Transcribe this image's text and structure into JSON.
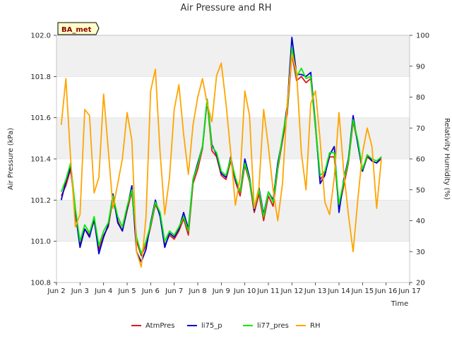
{
  "chart_data": {
    "type": "line",
    "title": "Air Pressure and RH",
    "badge": "BA_met",
    "xlabel": "Time",
    "ylabel": "Air Pressure (kPa)",
    "y2label": "Relativity Humidity (%)",
    "x_ticks": [
      "Jun 2",
      "Jun 3",
      "Jun 4",
      "Jun 5",
      "Jun 6",
      "Jun 7",
      "Jun 8",
      "Jun 9",
      "Jun 10",
      "Jun 11",
      "Jun 12",
      "Jun 13",
      "Jun 14",
      "Jun 15",
      "Jun 16",
      "Jun 17"
    ],
    "xlim": [
      2,
      17
    ],
    "ylim": [
      100.8,
      102.0
    ],
    "y_ticks": [
      "100.8",
      "101.0",
      "101.2",
      "101.4",
      "101.6",
      "101.8",
      "102.0"
    ],
    "y2lim": [
      20,
      100
    ],
    "y2_ticks": [
      "20",
      "30",
      "40",
      "50",
      "60",
      "70",
      "80",
      "90",
      "100"
    ],
    "grid": true,
    "legend_position": "bottom",
    "x": [
      2.2,
      2.4,
      2.6,
      2.8,
      3.0,
      3.2,
      3.4,
      3.6,
      3.8,
      4.0,
      4.2,
      4.4,
      4.6,
      4.8,
      5.0,
      5.2,
      5.4,
      5.6,
      5.8,
      6.0,
      6.2,
      6.4,
      6.6,
      6.8,
      7.0,
      7.2,
      7.4,
      7.6,
      7.8,
      8.0,
      8.2,
      8.4,
      8.6,
      8.8,
      9.0,
      9.2,
      9.4,
      9.6,
      9.8,
      10.0,
      10.2,
      10.4,
      10.6,
      10.8,
      11.0,
      11.2,
      11.4,
      11.6,
      11.8,
      12.0,
      12.2,
      12.4,
      12.6,
      12.8,
      13.0,
      13.2,
      13.4,
      13.6,
      13.8,
      14.0,
      14.2,
      14.4,
      14.6,
      14.8,
      15.0,
      15.2,
      15.4,
      15.6,
      15.8
    ],
    "series": [
      {
        "name": "AtmPres",
        "color": "#e41a1c",
        "axis": "left",
        "values": [
          101.22,
          101.27,
          101.35,
          101.15,
          100.99,
          101.06,
          101.03,
          101.1,
          100.96,
          101.03,
          101.07,
          101.21,
          101.1,
          101.05,
          101.15,
          101.24,
          101.0,
          100.93,
          100.98,
          101.07,
          101.18,
          101.13,
          100.98,
          101.03,
          101.01,
          101.05,
          101.11,
          101.03,
          101.28,
          101.35,
          101.45,
          101.68,
          101.44,
          101.41,
          101.32,
          101.3,
          101.39,
          101.29,
          101.22,
          101.37,
          101.29,
          101.14,
          101.23,
          101.1,
          101.22,
          101.17,
          101.35,
          101.49,
          101.62,
          101.91,
          101.78,
          101.8,
          101.77,
          101.79,
          101.55,
          101.3,
          101.33,
          101.41,
          101.41,
          101.16,
          101.27,
          101.38,
          101.58,
          101.48,
          101.34,
          101.41,
          101.39,
          101.38,
          101.4
        ]
      },
      {
        "name": "li75_p",
        "color": "#0000cd",
        "axis": "left",
        "values": [
          101.2,
          101.29,
          101.36,
          101.14,
          100.97,
          101.06,
          101.02,
          101.11,
          100.94,
          101.02,
          101.08,
          101.23,
          101.09,
          101.05,
          101.16,
          101.27,
          100.95,
          100.9,
          100.96,
          101.09,
          101.2,
          101.12,
          100.97,
          101.04,
          101.02,
          101.06,
          101.14,
          101.06,
          101.3,
          101.38,
          101.46,
          101.69,
          101.47,
          101.42,
          101.33,
          101.31,
          101.41,
          101.3,
          101.24,
          101.4,
          101.31,
          101.15,
          101.26,
          101.13,
          101.24,
          101.2,
          101.38,
          101.5,
          101.66,
          101.99,
          101.81,
          101.81,
          101.8,
          101.82,
          101.57,
          101.28,
          101.32,
          101.42,
          101.46,
          101.14,
          101.3,
          101.4,
          101.61,
          101.47,
          101.34,
          101.42,
          101.39,
          101.38,
          101.41
        ]
      },
      {
        "name": "li77_pres",
        "color": "#00ee00",
        "axis": "left",
        "values": [
          101.24,
          101.3,
          101.38,
          101.16,
          101.0,
          101.08,
          101.04,
          101.12,
          100.98,
          101.05,
          101.09,
          101.22,
          101.12,
          101.07,
          101.17,
          101.25,
          101.02,
          100.94,
          101.0,
          101.08,
          101.19,
          101.14,
          101.0,
          101.05,
          101.03,
          101.07,
          101.12,
          101.05,
          101.3,
          101.37,
          101.46,
          101.69,
          101.46,
          101.43,
          101.34,
          101.32,
          101.4,
          101.31,
          101.24,
          101.38,
          101.3,
          101.16,
          101.25,
          101.12,
          101.24,
          101.19,
          101.36,
          101.51,
          101.64,
          101.94,
          101.8,
          101.84,
          101.79,
          101.8,
          101.56,
          101.32,
          101.34,
          101.43,
          101.43,
          101.18,
          101.29,
          101.39,
          101.59,
          101.49,
          101.35,
          101.42,
          101.4,
          101.39,
          101.41
        ]
      },
      {
        "name": "RH",
        "color": "#ffa500",
        "axis": "right",
        "values": [
          71,
          86,
          60,
          38,
          42,
          76,
          74,
          49,
          54,
          81,
          63,
          44,
          52,
          60,
          75,
          66,
          30,
          25,
          41,
          82,
          89,
          62,
          42,
          54,
          76,
          84,
          68,
          55,
          71,
          80,
          86,
          78,
          72,
          87,
          91,
          78,
          62,
          45,
          54,
          82,
          74,
          44,
          51,
          76,
          64,
          50,
          40,
          52,
          78,
          94,
          88,
          62,
          50,
          78,
          82,
          66,
          46,
          42,
          54,
          75,
          56,
          42,
          30,
          47,
          62,
          70,
          64,
          44,
          60
        ]
      }
    ]
  }
}
